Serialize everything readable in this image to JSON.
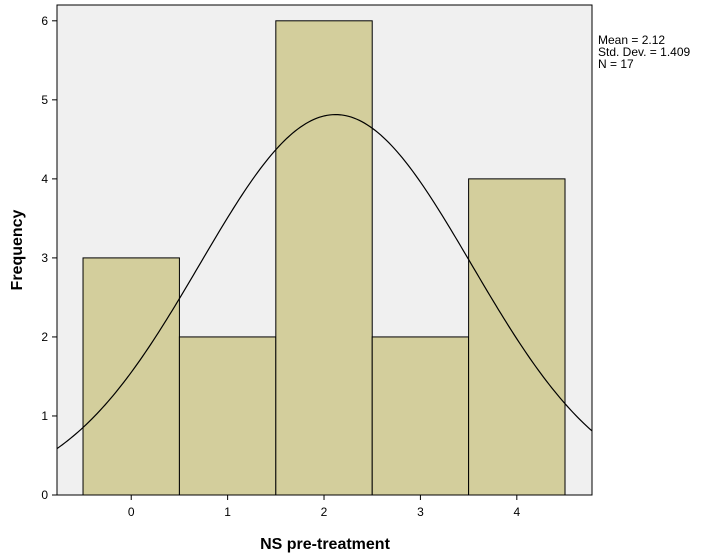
{
  "chart_data": {
    "type": "bar",
    "subtype": "histogram",
    "categories": [
      "0",
      "1",
      "2",
      "3",
      "4"
    ],
    "x": [
      0,
      1,
      2,
      3,
      4
    ],
    "values": [
      3,
      2,
      6,
      2,
      4
    ],
    "xlabel": "NS pre-treatment",
    "ylabel": "Frequency",
    "ylim": [
      0,
      6.2
    ],
    "xlim": [
      -0.77,
      4.78
    ],
    "yticks": [
      0,
      1,
      2,
      3,
      4,
      5,
      6
    ],
    "grid": false,
    "normal_curve": {
      "mean": 2.12,
      "sd": 1.409,
      "n": 17,
      "bin_width": 1
    },
    "stats_labels": [
      "Mean = 2.12",
      "Std. Dev. = 1.409",
      "N = 17"
    ],
    "colors": {
      "plot_background": "#f0f0f0",
      "bar_fill": "#d3ce9c",
      "bar_stroke": "#000000",
      "curve": "#000000"
    }
  }
}
